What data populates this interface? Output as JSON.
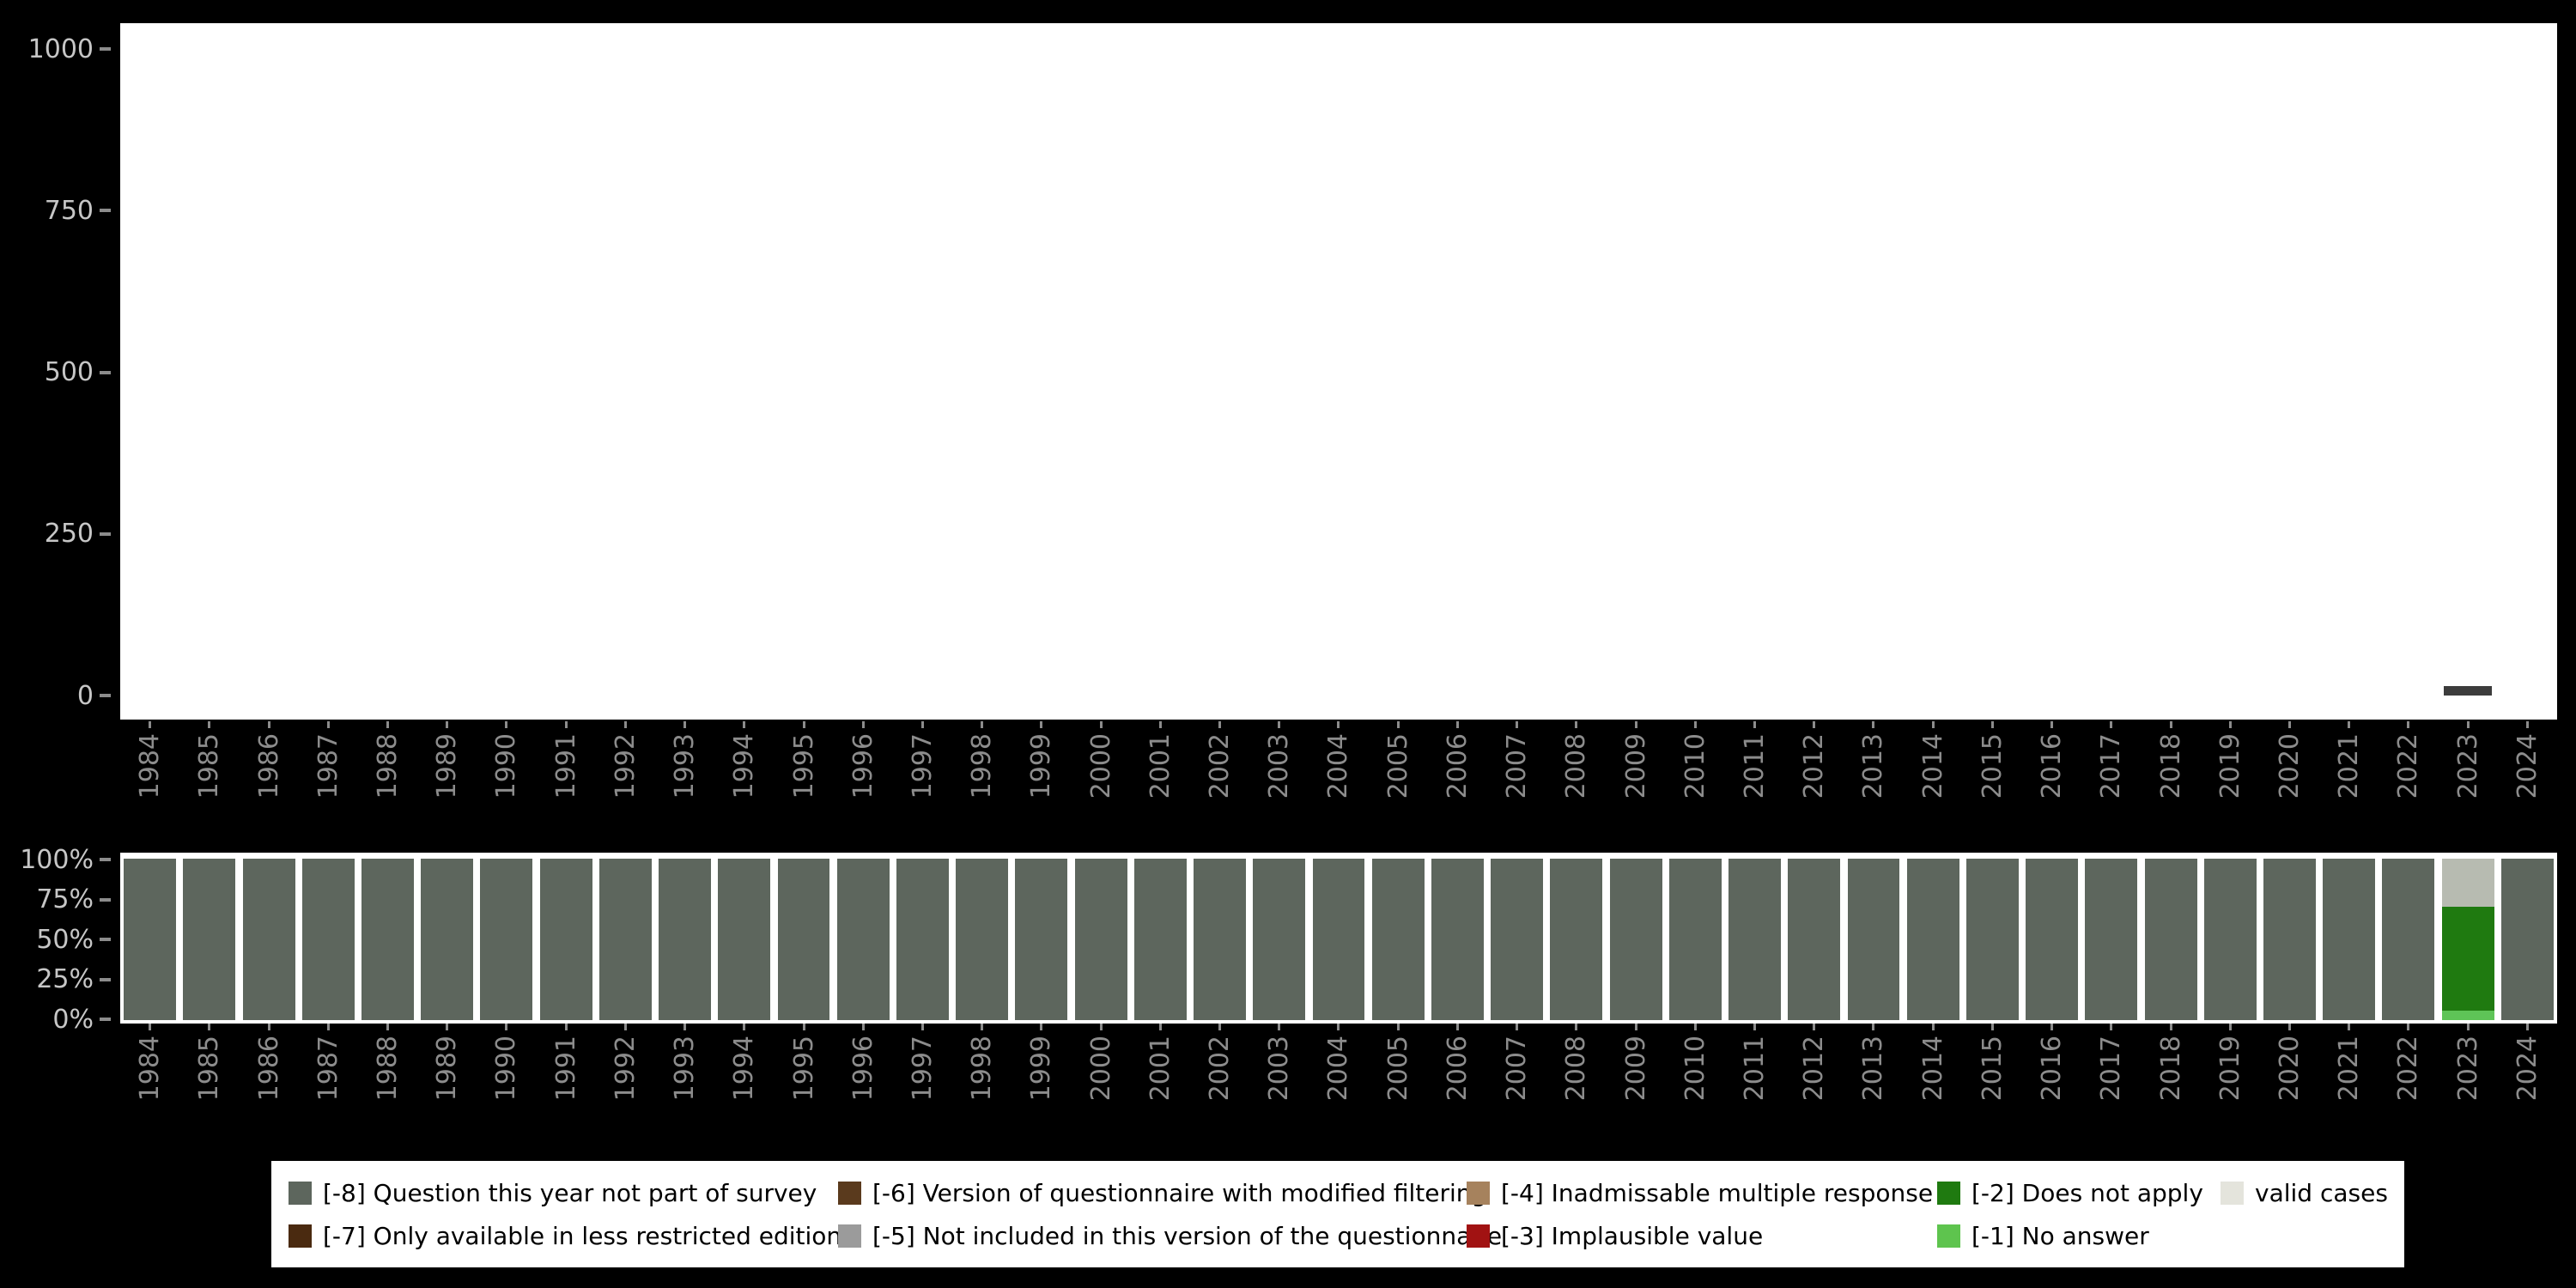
{
  "page_background": "#000000",
  "axes": {
    "y_tick_label_color": "#c6c6c6",
    "x_tick_label_color": "#8c8c8c",
    "tick_mark_color": "#8c8c8c",
    "plot_background": "#ffffff"
  },
  "chart_data": [
    {
      "id": "case-counts-by-year",
      "type": "bar",
      "title": "",
      "xlabel": "",
      "ylabel": "",
      "ylim": [
        0,
        1000
      ],
      "y_tick_labels": [
        "1000",
        "750",
        "500",
        "250",
        "0"
      ],
      "grid": false,
      "bar_color": "#3c3c3c",
      "x": [
        "1984",
        "1985",
        "1986",
        "1987",
        "1988",
        "1989",
        "1990",
        "1991",
        "1992",
        "1993",
        "1994",
        "1995",
        "1996",
        "1997",
        "1998",
        "1999",
        "2000",
        "2001",
        "2002",
        "2003",
        "2004",
        "2005",
        "2006",
        "2007",
        "2008",
        "2009",
        "2010",
        "2011",
        "2012",
        "2013",
        "2014",
        "2015",
        "2016",
        "2017",
        "2018",
        "2019",
        "2020",
        "2021",
        "2022",
        "2023",
        "2024"
      ],
      "values": [
        0,
        0,
        0,
        0,
        0,
        0,
        0,
        0,
        0,
        0,
        0,
        0,
        0,
        0,
        0,
        0,
        0,
        0,
        0,
        0,
        0,
        0,
        0,
        0,
        0,
        0,
        0,
        0,
        0,
        0,
        0,
        0,
        0,
        0,
        0,
        0,
        0,
        0,
        0,
        15,
        0
      ]
    },
    {
      "id": "missing-value-breakdown-percent",
      "type": "bar",
      "stacked": true,
      "title": "",
      "xlabel": "",
      "ylabel": "",
      "ylim": [
        0,
        100
      ],
      "y_tick_labels": [
        "100%",
        "75%",
        "50%",
        "25%",
        "0%"
      ],
      "grid": false,
      "x": [
        "1984",
        "1985",
        "1986",
        "1987",
        "1988",
        "1989",
        "1990",
        "1991",
        "1992",
        "1993",
        "1994",
        "1995",
        "1996",
        "1997",
        "1998",
        "1999",
        "2000",
        "2001",
        "2002",
        "2003",
        "2004",
        "2005",
        "2006",
        "2007",
        "2008",
        "2009",
        "2010",
        "2011",
        "2012",
        "2013",
        "2014",
        "2015",
        "2016",
        "2017",
        "2018",
        "2019",
        "2020",
        "2021",
        "2022",
        "2023",
        "2024"
      ],
      "series": [
        {
          "name": "valid cases",
          "color": "#b7bbb1",
          "values": [
            0,
            0,
            0,
            0,
            0,
            0,
            0,
            0,
            0,
            0,
            0,
            0,
            0,
            0,
            0,
            0,
            0,
            0,
            0,
            0,
            0,
            0,
            0,
            0,
            0,
            0,
            0,
            0,
            0,
            0,
            0,
            0,
            0,
            0,
            0,
            0,
            0,
            0,
            0,
            30,
            0
          ]
        },
        {
          "name": "[-2] Does not apply",
          "color": "#1f7a10",
          "values": [
            0,
            0,
            0,
            0,
            0,
            0,
            0,
            0,
            0,
            0,
            0,
            0,
            0,
            0,
            0,
            0,
            0,
            0,
            0,
            0,
            0,
            0,
            0,
            0,
            0,
            0,
            0,
            0,
            0,
            0,
            0,
            0,
            0,
            0,
            0,
            0,
            0,
            0,
            0,
            64,
            0
          ]
        },
        {
          "name": "[-1] No answer",
          "color": "#5ec457",
          "values": [
            0,
            0,
            0,
            0,
            0,
            0,
            0,
            0,
            0,
            0,
            0,
            0,
            0,
            0,
            0,
            0,
            0,
            0,
            0,
            0,
            0,
            0,
            0,
            0,
            0,
            0,
            0,
            0,
            0,
            0,
            0,
            0,
            0,
            0,
            0,
            0,
            0,
            0,
            0,
            6,
            0
          ]
        },
        {
          "name": "[-8] Question this year not part of survey",
          "color": "#5d665d",
          "values": [
            100,
            100,
            100,
            100,
            100,
            100,
            100,
            100,
            100,
            100,
            100,
            100,
            100,
            100,
            100,
            100,
            100,
            100,
            100,
            100,
            100,
            100,
            100,
            100,
            100,
            100,
            100,
            100,
            100,
            100,
            100,
            100,
            100,
            100,
            100,
            100,
            100,
            100,
            100,
            0,
            100
          ]
        }
      ]
    }
  ],
  "legend": {
    "items": [
      {
        "label": "[-8] Question this year not part of survey",
        "color": "#5d665d"
      },
      {
        "label": "[-6] Version of questionnaire with modified filtering",
        "color": "#5a3a1d"
      },
      {
        "label": "[-4] Inadmissable multiple response",
        "color": "#a6825d"
      },
      {
        "label": "[-2] Does not apply",
        "color": "#1f7a10"
      },
      {
        "label": "valid cases",
        "color": "#e4e4dc"
      },
      {
        "label": "[-7] Only available in less restricted edition",
        "color": "#4a2a10"
      },
      {
        "label": "[-5] Not included in this version of the questionnaire",
        "color": "#9b9b9b"
      },
      {
        "label": "[-3] Implausible value",
        "color": "#a11212"
      },
      {
        "label": "[-1] No answer",
        "color": "#5ec44e"
      }
    ]
  }
}
